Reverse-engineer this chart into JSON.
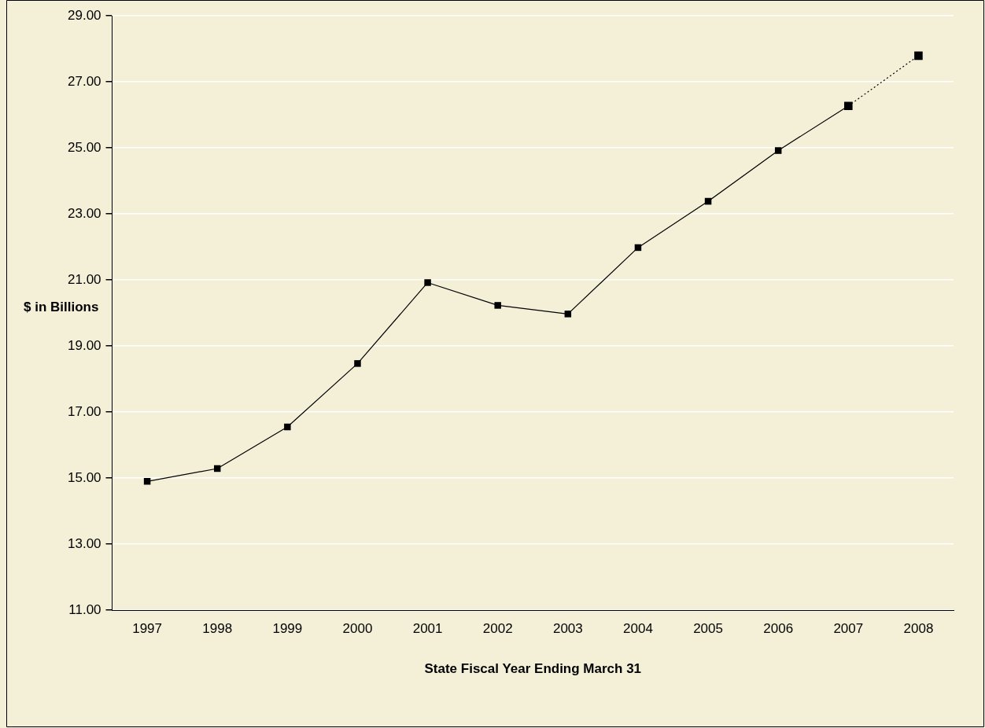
{
  "chart_data": {
    "type": "line",
    "xlabel": "State Fiscal Year Ending March 31",
    "ylabel": "$ in Billions",
    "categories": [
      "1997",
      "1998",
      "1999",
      "2000",
      "2001",
      "2002",
      "2003",
      "2004",
      "2005",
      "2006",
      "2007",
      "2008"
    ],
    "series": [
      {
        "color": "#000000",
        "line_style": "solid",
        "values": [
          14.9,
          15.29,
          16.55,
          18.47,
          20.92,
          20.23,
          19.97,
          21.98,
          23.38,
          24.92,
          26.27,
          null
        ]
      },
      {
        "color": "#000000",
        "line_style": "dotted",
        "values": [
          null,
          null,
          null,
          null,
          null,
          null,
          null,
          null,
          null,
          null,
          26.27,
          27.79
        ]
      }
    ],
    "ylim": [
      11,
      29
    ],
    "yticks": [
      {
        "value": 11,
        "label": "11.00"
      },
      {
        "value": 13,
        "label": "13.00"
      },
      {
        "value": 15,
        "label": "15.00"
      },
      {
        "value": 17,
        "label": "17.00"
      },
      {
        "value": 19,
        "label": "19.00"
      },
      {
        "value": 21,
        "label": "21.00"
      },
      {
        "value": 23,
        "label": "23.00"
      },
      {
        "value": 25,
        "label": "25.00"
      },
      {
        "value": 27,
        "label": "27.00"
      },
      {
        "value": 29,
        "label": "29.00"
      }
    ],
    "grid": "y",
    "marker": "square",
    "legend": false
  }
}
